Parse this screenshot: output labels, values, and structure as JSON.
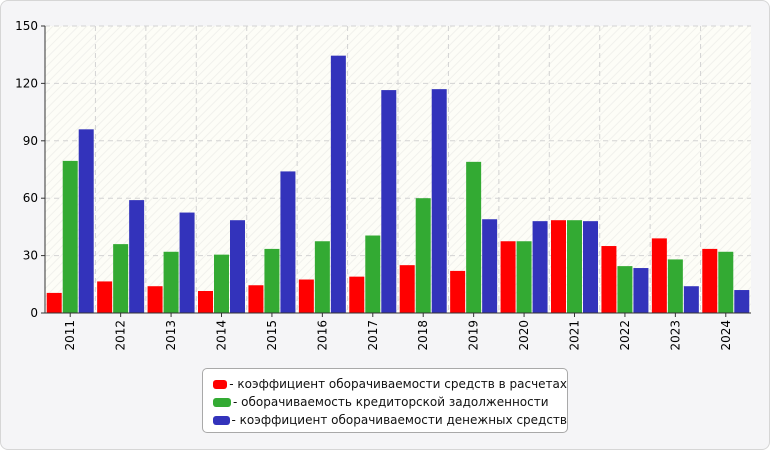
{
  "chart_data": {
    "type": "bar",
    "categories": [
      "2011",
      "2012",
      "2013",
      "2014",
      "2015",
      "2016",
      "2017",
      "2018",
      "2019",
      "2020",
      "2021",
      "2022",
      "2023",
      "2024"
    ],
    "series": [
      {
        "name": "- коэффициент оборачиваемости средств в расчетах",
        "color": "#ff0000",
        "values": [
          10.5,
          16.5,
          14,
          11.5,
          14.5,
          17.5,
          19,
          25,
          22,
          37.5,
          48.5,
          35,
          39,
          33.5
        ]
      },
      {
        "name": "- оборачиваемость кредиторской задолженности",
        "color": "#33aa33",
        "values": [
          79.5,
          36,
          32,
          30.5,
          33.5,
          37.5,
          40.5,
          60,
          79,
          37.5,
          48.5,
          24.5,
          28,
          32
        ]
      },
      {
        "name": "- коэффициент оборачиваемости денежных средств",
        "color": "#3333bb",
        "values": [
          96,
          59,
          52.5,
          48.5,
          74,
          134.5,
          116.5,
          117,
          49,
          48,
          48,
          23.5,
          14,
          12
        ]
      }
    ],
    "yticks": [
      "0",
      "30",
      "60",
      "90",
      "120",
      "150"
    ],
    "ylim": [
      0,
      150
    ],
    "title": "",
    "xlabel": "",
    "ylabel": "",
    "grid": true,
    "legend_position": "bottom-center"
  }
}
